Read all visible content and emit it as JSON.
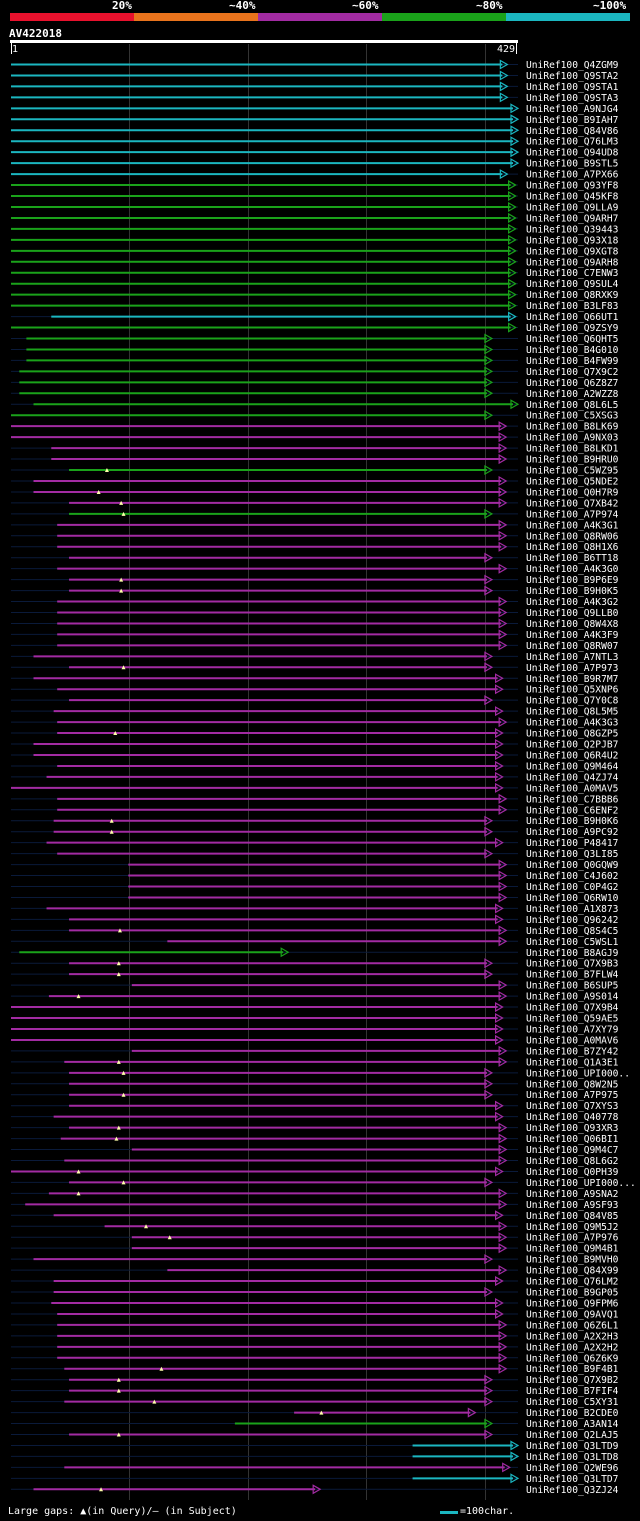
{
  "legend": {
    "labels": [
      "20%",
      "~40%",
      "~60%",
      "~80%",
      "~100%"
    ],
    "colors": [
      "#e8112d",
      "#e8731c",
      "#a22ba2",
      "#1aa21a",
      "#1bb6c0"
    ]
  },
  "query": {
    "id": "AV422018",
    "start_label": "1",
    "end_label": "429"
  },
  "footer": {
    "gaps_text": "Large gaps: ▲(in Query)/— (in Subject)",
    "scale_text": "=100char."
  },
  "chart_data": {
    "type": "alignment",
    "query_length": 429,
    "color_by_identity": {
      "cyan": "~100%",
      "green": "~80%",
      "purple": "~60%",
      "orange": "~40%",
      "red": "20%"
    },
    "hits": [
      {
        "name": "UniRef100_Q4ZGM9",
        "start": 1,
        "end": 420,
        "color": "cyan",
        "qgap": null
      },
      {
        "name": "UniRef100_Q9STA2",
        "start": 1,
        "end": 420,
        "color": "cyan",
        "qgap": null
      },
      {
        "name": "UniRef100_Q9STA1",
        "start": 1,
        "end": 420,
        "color": "cyan",
        "qgap": null
      },
      {
        "name": "UniRef100_Q9STA3",
        "start": 1,
        "end": 420,
        "color": "cyan",
        "qgap": null
      },
      {
        "name": "UniRef100_A9NJG4",
        "start": 1,
        "end": 429,
        "color": "cyan",
        "qgap": null
      },
      {
        "name": "UniRef100_B9IAH7",
        "start": 1,
        "end": 429,
        "color": "cyan",
        "qgap": null
      },
      {
        "name": "UniRef100_Q84V86",
        "start": 1,
        "end": 429,
        "color": "cyan",
        "qgap": null
      },
      {
        "name": "UniRef100_Q76LM3",
        "start": 1,
        "end": 429,
        "color": "cyan",
        "qgap": null
      },
      {
        "name": "UniRef100_Q94UD8",
        "start": 1,
        "end": 429,
        "color": "cyan",
        "qgap": null
      },
      {
        "name": "UniRef100_B9STL5",
        "start": 1,
        "end": 429,
        "color": "cyan",
        "qgap": null
      },
      {
        "name": "UniRef100_A7PX66",
        "start": 1,
        "end": 420,
        "color": "cyan",
        "qgap": null
      },
      {
        "name": "UniRef100_Q93YF8",
        "start": 1,
        "end": 427,
        "color": "green",
        "qgap": null
      },
      {
        "name": "UniRef100_Q45KF8",
        "start": 1,
        "end": 427,
        "color": "green",
        "qgap": null
      },
      {
        "name": "UniRef100_Q9LLA9",
        "start": 1,
        "end": 427,
        "color": "green",
        "qgap": null
      },
      {
        "name": "UniRef100_Q9ARH7",
        "start": 1,
        "end": 427,
        "color": "green",
        "qgap": null
      },
      {
        "name": "UniRef100_Q39443",
        "start": 1,
        "end": 427,
        "color": "green",
        "qgap": null
      },
      {
        "name": "UniRef100_Q93X18",
        "start": 1,
        "end": 427,
        "color": "green",
        "qgap": null
      },
      {
        "name": "UniRef100_Q9XGT8",
        "start": 1,
        "end": 427,
        "color": "green",
        "qgap": null
      },
      {
        "name": "UniRef100_Q9ARH8",
        "start": 1,
        "end": 427,
        "color": "green",
        "qgap": null
      },
      {
        "name": "UniRef100_C7ENW3",
        "start": 1,
        "end": 427,
        "color": "green",
        "qgap": null
      },
      {
        "name": "UniRef100_Q9SUL4",
        "start": 1,
        "end": 427,
        "color": "green",
        "qgap": null
      },
      {
        "name": "UniRef100_Q8RXK9",
        "start": 1,
        "end": 427,
        "color": "green",
        "qgap": null
      },
      {
        "name": "UniRef100_B3LF83",
        "start": 1,
        "end": 427,
        "color": "green",
        "qgap": null
      },
      {
        "name": "UniRef100_Q66UT1",
        "start": 35,
        "end": 427,
        "color": "cyan",
        "qgap": null
      },
      {
        "name": "UniRef100_Q9ZSY9",
        "start": 1,
        "end": 427,
        "color": "green",
        "qgap": null
      },
      {
        "name": "UniRef100_Q6QHT5",
        "start": 14,
        "end": 407,
        "color": "green",
        "qgap": null
      },
      {
        "name": "UniRef100_B4G010",
        "start": 14,
        "end": 407,
        "color": "green",
        "qgap": null
      },
      {
        "name": "UniRef100_B4FW99",
        "start": 14,
        "end": 407,
        "color": "green",
        "qgap": null
      },
      {
        "name": "UniRef100_Q7X9C2",
        "start": 8,
        "end": 407,
        "color": "green",
        "qgap": null
      },
      {
        "name": "UniRef100_Q6Z8Z7",
        "start": 8,
        "end": 407,
        "color": "green",
        "qgap": null
      },
      {
        "name": "UniRef100_A2WZZ8",
        "start": 8,
        "end": 407,
        "color": "green",
        "qgap": null
      },
      {
        "name": "UniRef100_Q8L6L5",
        "start": 20,
        "end": 429,
        "color": "green",
        "qgap": null
      },
      {
        "name": "UniRef100_C5XSG3",
        "start": 1,
        "end": 407,
        "color": "green",
        "qgap": null
      },
      {
        "name": "UniRef100_B8LK69",
        "start": 1,
        "end": 419,
        "color": "purple",
        "qgap": null
      },
      {
        "name": "UniRef100_A9NX03",
        "start": 1,
        "end": 419,
        "color": "purple",
        "qgap": null
      },
      {
        "name": "UniRef100_B8LKD1",
        "start": 35,
        "end": 419,
        "color": "purple",
        "qgap": null
      },
      {
        "name": "UniRef100_B9HRU0",
        "start": 35,
        "end": 419,
        "color": "purple",
        "qgap": null
      },
      {
        "name": "UniRef100_C5WZ95",
        "start": 50,
        "end": 407,
        "color": "green",
        "qgap": 82
      },
      {
        "name": "UniRef100_Q5NDE2",
        "start": 20,
        "end": 419,
        "color": "purple",
        "qgap": null
      },
      {
        "name": "UniRef100_Q0H7R9",
        "start": 20,
        "end": 419,
        "color": "purple",
        "qgap": 75
      },
      {
        "name": "UniRef100_Q7XB42",
        "start": 50,
        "end": 419,
        "color": "purple",
        "qgap": 94
      },
      {
        "name": "UniRef100_A7P974",
        "start": 50,
        "end": 407,
        "color": "green",
        "qgap": 96
      },
      {
        "name": "UniRef100_A4K3G1",
        "start": 40,
        "end": 419,
        "color": "purple",
        "qgap": null
      },
      {
        "name": "UniRef100_Q8RW06",
        "start": 40,
        "end": 419,
        "color": "purple",
        "qgap": null
      },
      {
        "name": "UniRef100_Q8H1X6",
        "start": 40,
        "end": 419,
        "color": "purple",
        "qgap": null
      },
      {
        "name": "UniRef100_B6TT18",
        "start": 50,
        "end": 407,
        "color": "purple",
        "qgap": null
      },
      {
        "name": "UniRef100_A4K3G0",
        "start": 40,
        "end": 419,
        "color": "purple",
        "qgap": null
      },
      {
        "name": "UniRef100_B9P6E9",
        "start": 50,
        "end": 407,
        "color": "purple",
        "qgap": 94
      },
      {
        "name": "UniRef100_B9H0K5",
        "start": 50,
        "end": 407,
        "color": "purple",
        "qgap": 94
      },
      {
        "name": "UniRef100_A4K3G2",
        "start": 40,
        "end": 419,
        "color": "purple",
        "qgap": null
      },
      {
        "name": "UniRef100_Q9LLB0",
        "start": 40,
        "end": 419,
        "color": "purple",
        "qgap": null
      },
      {
        "name": "UniRef100_Q8W4X8",
        "start": 40,
        "end": 419,
        "color": "purple",
        "qgap": null
      },
      {
        "name": "UniRef100_A4K3F9",
        "start": 40,
        "end": 419,
        "color": "purple",
        "qgap": null
      },
      {
        "name": "UniRef100_Q8RW07",
        "start": 40,
        "end": 419,
        "color": "purple",
        "qgap": null
      },
      {
        "name": "UniRef100_A7NTL3",
        "start": 20,
        "end": 407,
        "color": "purple",
        "qgap": null
      },
      {
        "name": "UniRef100_A7P973",
        "start": 50,
        "end": 407,
        "color": "purple",
        "qgap": 96
      },
      {
        "name": "UniRef100_B9R7M7",
        "start": 20,
        "end": 416,
        "color": "purple",
        "qgap": null
      },
      {
        "name": "UniRef100_Q5XNP6",
        "start": 40,
        "end": 416,
        "color": "purple",
        "qgap": null
      },
      {
        "name": "UniRef100_Q7Y0C8",
        "start": 50,
        "end": 407,
        "color": "purple",
        "qgap": null
      },
      {
        "name": "UniRef100_Q8L5M5",
        "start": 37,
        "end": 416,
        "color": "purple",
        "qgap": null
      },
      {
        "name": "UniRef100_A4K3G3",
        "start": 40,
        "end": 419,
        "color": "purple",
        "qgap": null
      },
      {
        "name": "UniRef100_Q8GZP5",
        "start": 40,
        "end": 416,
        "color": "purple",
        "qgap": 89
      },
      {
        "name": "UniRef100_Q2PJB7",
        "start": 20,
        "end": 416,
        "color": "purple",
        "qgap": null
      },
      {
        "name": "UniRef100_Q6R4U2",
        "start": 20,
        "end": 416,
        "color": "purple",
        "qgap": null
      },
      {
        "name": "UniRef100_Q9M464",
        "start": 40,
        "end": 416,
        "color": "purple",
        "qgap": null
      },
      {
        "name": "UniRef100_Q4ZJ74",
        "start": 31,
        "end": 416,
        "color": "purple",
        "qgap": null
      },
      {
        "name": "UniRef100_A0MAV5",
        "start": 1,
        "end": 416,
        "color": "purple",
        "qgap": null
      },
      {
        "name": "UniRef100_C7BBB6",
        "start": 40,
        "end": 419,
        "color": "purple",
        "qgap": null
      },
      {
        "name": "UniRef100_C6ENF2",
        "start": 40,
        "end": 419,
        "color": "purple",
        "qgap": null
      },
      {
        "name": "UniRef100_B9H0K6",
        "start": 37,
        "end": 407,
        "color": "purple",
        "qgap": 86
      },
      {
        "name": "UniRef100_A9PC92",
        "start": 37,
        "end": 407,
        "color": "purple",
        "qgap": 86
      },
      {
        "name": "UniRef100_P48417",
        "start": 31,
        "end": 416,
        "color": "purple",
        "qgap": null
      },
      {
        "name": "UniRef100_Q3LI85",
        "start": 40,
        "end": 407,
        "color": "purple",
        "qgap": null
      },
      {
        "name": "UniRef100_Q0GQW9",
        "start": 100,
        "end": 419,
        "color": "purple",
        "qgap": null
      },
      {
        "name": "UniRef100_C4J602",
        "start": 100,
        "end": 419,
        "color": "purple",
        "qgap": null
      },
      {
        "name": "UniRef100_C0P4G2",
        "start": 100,
        "end": 419,
        "color": "purple",
        "qgap": null
      },
      {
        "name": "UniRef100_Q6RW10",
        "start": 100,
        "end": 419,
        "color": "purple",
        "qgap": null
      },
      {
        "name": "UniRef100_A1X873",
        "start": 31,
        "end": 416,
        "color": "purple",
        "qgap": null
      },
      {
        "name": "UniRef100_Q96242",
        "start": 50,
        "end": 416,
        "color": "purple",
        "qgap": null
      },
      {
        "name": "UniRef100_Q8S4C5",
        "start": 50,
        "end": 419,
        "color": "purple",
        "qgap": 93
      },
      {
        "name": "UniRef100_C5WSL1",
        "start": 133,
        "end": 419,
        "color": "purple",
        "qgap": null
      },
      {
        "name": "UniRef100_B8AGJ9",
        "start": 8,
        "end": 235,
        "color": "green",
        "qgap": null
      },
      {
        "name": "UniRef100_Q7X9B3",
        "start": 50,
        "end": 407,
        "color": "purple",
        "qgap": 92
      },
      {
        "name": "UniRef100_B7FLW4",
        "start": 50,
        "end": 407,
        "color": "purple",
        "qgap": 92
      },
      {
        "name": "UniRef100_B6SUP5",
        "start": 103,
        "end": 419,
        "color": "purple",
        "qgap": null
      },
      {
        "name": "UniRef100_A9S014",
        "start": 33,
        "end": 419,
        "color": "purple",
        "qgap": 58
      },
      {
        "name": "UniRef100_Q7X9B4",
        "start": 1,
        "end": 416,
        "color": "purple",
        "qgap": null
      },
      {
        "name": "UniRef100_Q59AE5",
        "start": 1,
        "end": 416,
        "color": "purple",
        "qgap": null
      },
      {
        "name": "UniRef100_A7XY79",
        "start": 1,
        "end": 416,
        "color": "purple",
        "qgap": null
      },
      {
        "name": "UniRef100_A0MAV6",
        "start": 1,
        "end": 416,
        "color": "purple",
        "qgap": null
      },
      {
        "name": "UniRef100_B7ZY42",
        "start": 103,
        "end": 419,
        "color": "purple",
        "qgap": null
      },
      {
        "name": "UniRef100_Q1A3E1",
        "start": 46,
        "end": 419,
        "color": "purple",
        "qgap": 92
      },
      {
        "name": "UniRef100_UPI000..",
        "start": 50,
        "end": 407,
        "color": "purple",
        "qgap": 96
      },
      {
        "name": "UniRef100_Q8W2N5",
        "start": 50,
        "end": 407,
        "color": "purple",
        "qgap": null
      },
      {
        "name": "UniRef100_A7P975",
        "start": 50,
        "end": 407,
        "color": "purple",
        "qgap": 96
      },
      {
        "name": "UniRef100_Q7XYS3",
        "start": 50,
        "end": 416,
        "color": "purple",
        "qgap": null
      },
      {
        "name": "UniRef100_Q40778",
        "start": 37,
        "end": 416,
        "color": "purple",
        "qgap": null
      },
      {
        "name": "UniRef100_Q93XR3",
        "start": 50,
        "end": 419,
        "color": "purple",
        "qgap": 92
      },
      {
        "name": "UniRef100_Q06BI1",
        "start": 43,
        "end": 419,
        "color": "purple",
        "qgap": 90
      },
      {
        "name": "UniRef100_Q9M4C7",
        "start": 103,
        "end": 419,
        "color": "purple",
        "qgap": null
      },
      {
        "name": "UniRef100_Q8L6G2",
        "start": 46,
        "end": 419,
        "color": "purple",
        "qgap": null
      },
      {
        "name": "UniRef100_Q0PH39",
        "start": 1,
        "end": 416,
        "color": "purple",
        "qgap": 58
      },
      {
        "name": "UniRef100_UPI000...",
        "start": 50,
        "end": 407,
        "color": "purple",
        "qgap": 96
      },
      {
        "name": "UniRef100_A9SNA2",
        "start": 33,
        "end": 419,
        "color": "purple",
        "qgap": 58
      },
      {
        "name": "UniRef100_A9SF93",
        "start": 13,
        "end": 419,
        "color": "purple",
        "qgap": null
      },
      {
        "name": "UniRef100_Q84V85",
        "start": 37,
        "end": 416,
        "color": "purple",
        "qgap": null
      },
      {
        "name": "UniRef100_Q9M5J2",
        "start": 80,
        "end": 419,
        "color": "purple",
        "qgap": 115
      },
      {
        "name": "UniRef100_A7P976",
        "start": 103,
        "end": 419,
        "color": "purple",
        "qgap": 135
      },
      {
        "name": "UniRef100_Q9M4B1",
        "start": 103,
        "end": 419,
        "color": "purple",
        "qgap": null
      },
      {
        "name": "UniRef100_B9MVH0",
        "start": 20,
        "end": 407,
        "color": "purple",
        "qgap": null
      },
      {
        "name": "UniRef100_Q84X99",
        "start": 133,
        "end": 419,
        "color": "purple",
        "qgap": null
      },
      {
        "name": "UniRef100_Q76LM2",
        "start": 37,
        "end": 416,
        "color": "purple",
        "qgap": null
      },
      {
        "name": "UniRef100_B9GP05",
        "start": 37,
        "end": 407,
        "color": "purple",
        "qgap": null
      },
      {
        "name": "UniRef100_Q9FPM6",
        "start": 35,
        "end": 416,
        "color": "purple",
        "qgap": null
      },
      {
        "name": "UniRef100_Q9AVQ1",
        "start": 40,
        "end": 416,
        "color": "purple",
        "qgap": null
      },
      {
        "name": "UniRef100_Q6Z6L1",
        "start": 40,
        "end": 419,
        "color": "purple",
        "qgap": null
      },
      {
        "name": "UniRef100_A2X2H3",
        "start": 40,
        "end": 419,
        "color": "purple",
        "qgap": null
      },
      {
        "name": "UniRef100_A2X2H2",
        "start": 40,
        "end": 419,
        "color": "purple",
        "qgap": null
      },
      {
        "name": "UniRef100_Q6Z6K9",
        "start": 40,
        "end": 419,
        "color": "purple",
        "qgap": null
      },
      {
        "name": "UniRef100_B9F4B1",
        "start": 46,
        "end": 419,
        "color": "purple",
        "qgap": 128
      },
      {
        "name": "UniRef100_Q7X9B2",
        "start": 50,
        "end": 407,
        "color": "purple",
        "qgap": 92
      },
      {
        "name": "UniRef100_B7FIF4",
        "start": 50,
        "end": 407,
        "color": "purple",
        "qgap": 92
      },
      {
        "name": "UniRef100_C5XY31",
        "start": 46,
        "end": 407,
        "color": "purple",
        "qgap": 122
      },
      {
        "name": "UniRef100_B2CDE0",
        "start": 240,
        "end": 393,
        "color": "purple",
        "qgap": 263
      },
      {
        "name": "UniRef100_A3AN14",
        "start": 190,
        "end": 407,
        "color": "green",
        "qgap": null
      },
      {
        "name": "UniRef100_Q2LAJ5",
        "start": 50,
        "end": 407,
        "color": "purple",
        "qgap": 92
      },
      {
        "name": "UniRef100_Q3LTD9",
        "start": 340,
        "end": 429,
        "color": "cyan",
        "qgap": null
      },
      {
        "name": "UniRef100_Q3LTD8",
        "start": 340,
        "end": 429,
        "color": "cyan",
        "qgap": null
      },
      {
        "name": "UniRef100_Q2WE96",
        "start": 46,
        "end": 422,
        "color": "purple",
        "qgap": null
      },
      {
        "name": "UniRef100_Q3LTD7",
        "start": 340,
        "end": 429,
        "color": "cyan",
        "qgap": null
      },
      {
        "name": "UniRef100_Q3ZJ24",
        "start": 20,
        "end": 262,
        "color": "purple",
        "qgap": 77
      }
    ]
  }
}
